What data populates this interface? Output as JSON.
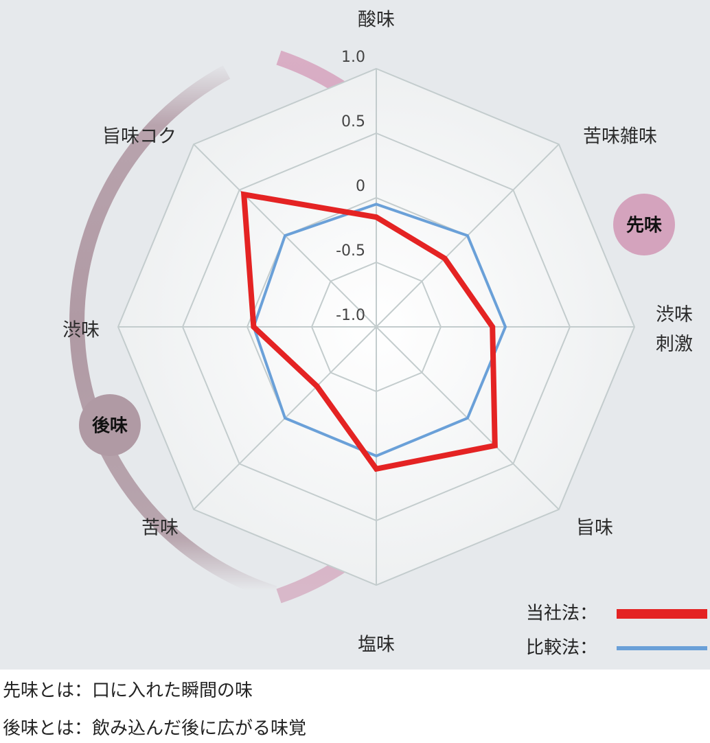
{
  "chart_data": {
    "type": "radar",
    "axes": [
      "酸味",
      "苦味雑味",
      "渋味刺激",
      "旨味",
      "塩味",
      "苦味",
      "渋味",
      "旨味コク"
    ],
    "rlim": [
      -1.0,
      1.0
    ],
    "ticks": [
      "1.0",
      "0.5",
      "0",
      "-0.5",
      "-1.0"
    ],
    "series": [
      {
        "name": "当社法",
        "color": "#e42323",
        "values": [
          -0.15,
          -0.25,
          -0.1,
          0.3,
          0.1,
          -0.35,
          -0.05,
          0.45
        ]
      },
      {
        "name": "比較法",
        "color": "#6aa0d8",
        "values": [
          -0.05,
          0.0,
          0.0,
          0.0,
          0.0,
          0.0,
          -0.05,
          0.0
        ]
      }
    ],
    "legend_position": "bottom-right",
    "badges": {
      "front": "先味",
      "after": "後味"
    },
    "legend_separator": "："
  },
  "colors": {
    "background": "#e6e9ec",
    "ring_front": "#d4a3bd",
    "ring_after": "#b09aa4",
    "grid": "#c3cccd"
  },
  "notes": [
    "先味とは：口に入れた瞬間の味",
    "後味とは：飲み込んだ後に広がる味覚"
  ]
}
